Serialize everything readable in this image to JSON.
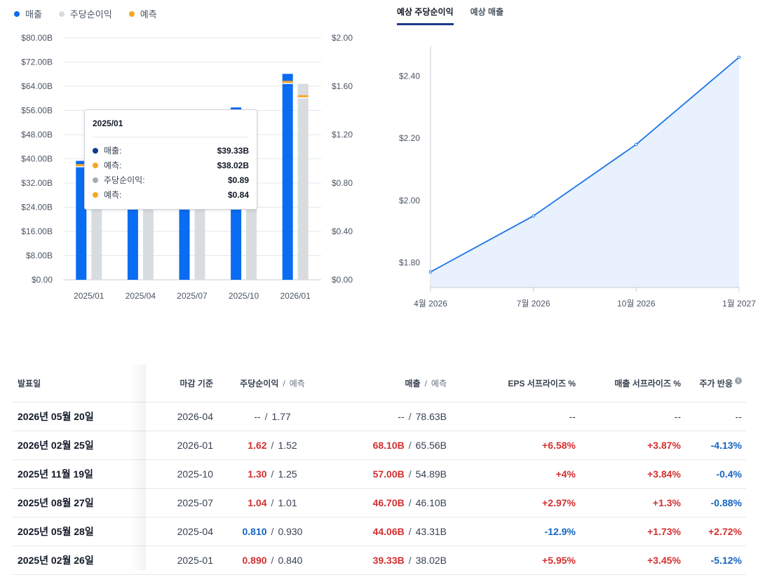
{
  "legend": [
    {
      "label": "매출",
      "color": "#0a6cf0"
    },
    {
      "label": "주당순이익",
      "color": "#d9dcdf"
    },
    {
      "label": "예측",
      "color": "#f5a623"
    }
  ],
  "tabs": [
    {
      "label": "예상 주당순이익",
      "active": true
    },
    {
      "label": "예상 매출",
      "active": false
    }
  ],
  "tooltip": {
    "title": "2025/01",
    "rows": [
      {
        "label": "매출:",
        "value": "$39.33B",
        "color": "#0d3b8a"
      },
      {
        "label": "예측:",
        "value": "$38.02B",
        "color": "#f5a623"
      },
      {
        "label": "주당순이익:",
        "value": "$0.89",
        "color": "#a7abb0"
      },
      {
        "label": "예측:",
        "value": "$0.84",
        "color": "#f5a623"
      }
    ]
  },
  "chart_data": [
    {
      "type": "bar",
      "categories": [
        "2025/01",
        "2025/04",
        "2025/07",
        "2025/10",
        "2026/01"
      ],
      "left_axis_ticks": [
        "$0.00",
        "$8.00B",
        "$16.00B",
        "$24.00B",
        "$32.00B",
        "$40.00B",
        "$48.00B",
        "$56.00B",
        "$64.00B",
        "$72.00B",
        "$80.00B"
      ],
      "right_axis_ticks": [
        "$0.00",
        "$0.40",
        "$0.80",
        "$1.20",
        "$1.60",
        "$2.00"
      ],
      "ylim_left": [
        0,
        80
      ],
      "ylim_right": [
        0,
        2
      ],
      "series": [
        {
          "name": "매출",
          "axis": "left",
          "values": [
            39.33,
            44.06,
            46.7,
            57.0,
            68.1
          ],
          "forecast": [
            38.02,
            43.31,
            46.1,
            54.89,
            65.56
          ],
          "color": "#0a6cf0"
        },
        {
          "name": "주당순이익",
          "axis": "right",
          "values": [
            0.89,
            0.81,
            1.04,
            1.3,
            1.62
          ],
          "forecast": [
            0.84,
            0.93,
            1.01,
            1.25,
            1.52
          ],
          "color": "#d9dcdf"
        }
      ],
      "forecast_color": "#f5a623",
      "grid": true
    },
    {
      "type": "area",
      "x": [
        "4월 2026",
        "7월 2026",
        "10월 2026",
        "1월 2027"
      ],
      "values": [
        1.77,
        1.95,
        2.18,
        2.46
      ],
      "y_ticks": [
        "$1.80",
        "$2.00",
        "$2.20",
        "$2.40"
      ],
      "ylim": [
        1.72,
        2.5
      ],
      "color": "#1a73e8",
      "fill": "#e8f1fd",
      "grid": false
    }
  ],
  "table": {
    "headers": {
      "date": "발표일",
      "period": "마감 기준",
      "eps": "주당순이익",
      "eps_sub": "예측",
      "rev": "매출",
      "rev_sub": "예측",
      "eps_surprise": "EPS 서프라이즈 %",
      "rev_surprise": "매출 서프라이즈 %",
      "price": "주가 반응"
    },
    "rows": [
      {
        "date": "2026년 05월 20일",
        "period": "2026-04",
        "eps": "--",
        "eps_est": "1.77",
        "rev": "--",
        "rev_est": "78.63B",
        "eps_surprise": "--",
        "rev_surprise": "--",
        "price": "--",
        "eps_c": "neutral",
        "rev_c": "neutral",
        "es_c": "neutral",
        "rs_c": "neutral",
        "p_c": "neutral"
      },
      {
        "date": "2026년 02월 25일",
        "period": "2026-01",
        "eps": "1.62",
        "eps_est": "1.52",
        "rev": "68.10B",
        "rev_est": "65.56B",
        "eps_surprise": "+6.58%",
        "rev_surprise": "+3.87%",
        "price": "-4.13%",
        "eps_c": "red",
        "rev_c": "red",
        "es_c": "red",
        "rs_c": "red",
        "p_c": "blue"
      },
      {
        "date": "2025년 11월 19일",
        "period": "2025-10",
        "eps": "1.30",
        "eps_est": "1.25",
        "rev": "57.00B",
        "rev_est": "54.89B",
        "eps_surprise": "+4%",
        "rev_surprise": "+3.84%",
        "price": "-0.4%",
        "eps_c": "red",
        "rev_c": "red",
        "es_c": "red",
        "rs_c": "red",
        "p_c": "blue"
      },
      {
        "date": "2025년 08월 27일",
        "period": "2025-07",
        "eps": "1.04",
        "eps_est": "1.01",
        "rev": "46.70B",
        "rev_est": "46.10B",
        "eps_surprise": "+2.97%",
        "rev_surprise": "+1.3%",
        "price": "-0.88%",
        "eps_c": "red",
        "rev_c": "red",
        "es_c": "red",
        "rs_c": "red",
        "p_c": "blue"
      },
      {
        "date": "2025년 05월 28일",
        "period": "2025-04",
        "eps": "0.810",
        "eps_est": "0.930",
        "rev": "44.06B",
        "rev_est": "43.31B",
        "eps_surprise": "-12.9%",
        "rev_surprise": "+1.73%",
        "price": "+2.72%",
        "eps_c": "blue",
        "rev_c": "red",
        "es_c": "blue",
        "rs_c": "red",
        "p_c": "red"
      },
      {
        "date": "2025년 02월 26일",
        "period": "2025-01",
        "eps": "0.890",
        "eps_est": "0.840",
        "rev": "39.33B",
        "rev_est": "38.02B",
        "eps_surprise": "+5.95%",
        "rev_surprise": "+3.45%",
        "price": "-5.12%",
        "eps_c": "red",
        "rev_c": "red",
        "es_c": "red",
        "rs_c": "red",
        "p_c": "blue"
      }
    ]
  }
}
